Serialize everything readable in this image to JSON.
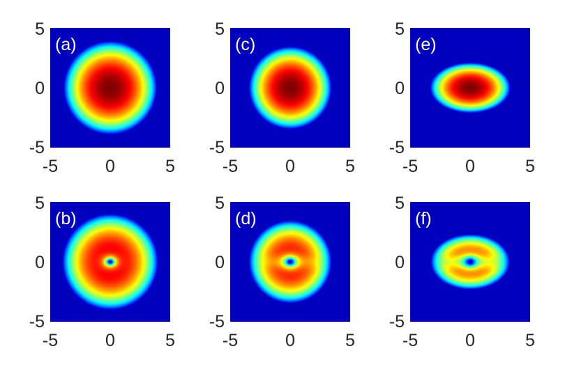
{
  "chart_data": {
    "type": "heatmap",
    "colormap": "jet",
    "colormap_name": "jet",
    "layout": {
      "rows": 2,
      "cols": 3
    },
    "background_color": "#00008b",
    "panels": [
      {
        "label": "(a)",
        "xlim": [
          -5,
          5
        ],
        "ylim": [
          -5,
          5
        ],
        "xticks": [
          "-5",
          "0",
          "5"
        ],
        "yticks": [
          "5",
          "0",
          "-5"
        ],
        "sigma_x": 3.9,
        "sigma_y": 3.9,
        "vortex": false,
        "vortex_core": 0,
        "dark_band": 0
      },
      {
        "label": "(c)",
        "xlim": [
          -5,
          5
        ],
        "ylim": [
          -5,
          5
        ],
        "xticks": [
          "-5",
          "0",
          "5"
        ],
        "yticks": [
          "5",
          "0",
          "-5"
        ],
        "sigma_x": 3.45,
        "sigma_y": 3.45,
        "vortex": false,
        "vortex_core": 0,
        "dark_band": 0
      },
      {
        "label": "(e)",
        "xlim": [
          -5,
          5
        ],
        "ylim": [
          -5,
          5
        ],
        "xticks": [
          "-5",
          "0",
          "5"
        ],
        "yticks": [
          "5",
          "0",
          "-5"
        ],
        "sigma_x": 3.35,
        "sigma_y": 2.1,
        "vortex": false,
        "vortex_core": 0,
        "dark_band": 0
      },
      {
        "label": "(b)",
        "xlim": [
          -5,
          5
        ],
        "ylim": [
          -5,
          5
        ],
        "xticks": [
          "-5",
          "0",
          "5"
        ],
        "yticks": [
          "5",
          "0",
          "-5"
        ],
        "sigma_x": 4.0,
        "sigma_y": 4.0,
        "vortex": true,
        "vortex_core": 0.32,
        "dark_band": 0
      },
      {
        "label": "(d)",
        "xlim": [
          -5,
          5
        ],
        "ylim": [
          -5,
          5
        ],
        "xticks": [
          "-5",
          "0",
          "5"
        ],
        "yticks": [
          "5",
          "0",
          "-5"
        ],
        "sigma_x": 3.45,
        "sigma_y": 3.45,
        "vortex": true,
        "vortex_core": 0.38,
        "dark_band": 0.25
      },
      {
        "label": "(f)",
        "xlim": [
          -5,
          5
        ],
        "ylim": [
          -5,
          5
        ],
        "xticks": [
          "-5",
          "0",
          "5"
        ],
        "yticks": [
          "5",
          "0",
          "-5"
        ],
        "sigma_x": 3.3,
        "sigma_y": 2.3,
        "vortex": true,
        "vortex_core": 0.42,
        "dark_band": 0.6
      }
    ]
  }
}
